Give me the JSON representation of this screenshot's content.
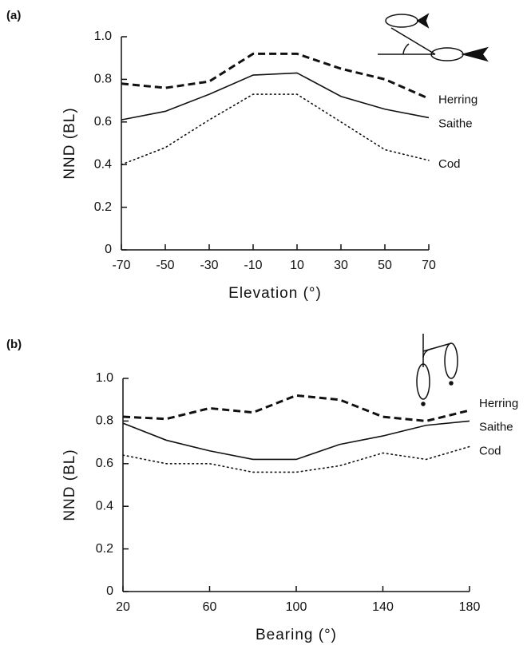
{
  "chart_data": [
    {
      "type": "line",
      "label": "(a)",
      "xlabel": "Elevation (°)",
      "ylabel": "NND (BL)",
      "x": [
        -70,
        -50,
        -30,
        -10,
        10,
        30,
        50,
        70
      ],
      "xlim": [
        -70,
        70
      ],
      "xticks": [
        -70,
        -50,
        -30,
        -10,
        10,
        30,
        50,
        70
      ],
      "ylim": [
        0,
        1
      ],
      "yticks": [
        0,
        0.2,
        0.4,
        0.6,
        0.8,
        {
          "value": 1,
          "label": "1.0"
        }
      ],
      "series": [
        {
          "name": "Herring",
          "color": "#111111",
          "style": "dashed",
          "values": [
            0.78,
            0.76,
            0.79,
            0.92,
            0.92,
            0.85,
            0.8,
            0.71
          ]
        },
        {
          "name": "Saithe",
          "color": "#111111",
          "style": "solid",
          "values": [
            0.61,
            0.65,
            0.73,
            0.82,
            0.83,
            0.72,
            0.66,
            0.62
          ]
        },
        {
          "name": "Cod",
          "color": "#111111",
          "style": "dotted",
          "values": [
            0.4,
            0.48,
            0.61,
            0.73,
            0.73,
            0.6,
            0.47,
            0.42
          ]
        }
      ]
    },
    {
      "type": "line",
      "label": "(b)",
      "xlabel": "Bearing (°)",
      "ylabel": "NND (BL)",
      "x": [
        20,
        40,
        60,
        80,
        100,
        120,
        140,
        160,
        180
      ],
      "xlim": [
        20,
        180
      ],
      "xticks": [
        20,
        60,
        100,
        140,
        180
      ],
      "ylim": [
        0,
        1
      ],
      "yticks": [
        0,
        0.2,
        0.4,
        0.6,
        0.8,
        {
          "value": 1,
          "label": "1.0"
        }
      ],
      "series": [
        {
          "name": "Herring",
          "color": "#111111",
          "style": "dashed",
          "values": [
            0.82,
            0.81,
            0.86,
            0.84,
            0.92,
            0.9,
            0.82,
            0.8,
            0.85
          ]
        },
        {
          "name": "Saithe",
          "color": "#111111",
          "style": "solid",
          "values": [
            0.79,
            0.71,
            0.66,
            0.62,
            0.62,
            0.69,
            0.73,
            0.78,
            0.8
          ]
        },
        {
          "name": "Cod",
          "color": "#111111",
          "style": "dotted",
          "values": [
            0.64,
            0.6,
            0.6,
            0.56,
            0.56,
            0.59,
            0.65,
            0.62,
            0.68
          ]
        }
      ]
    }
  ]
}
